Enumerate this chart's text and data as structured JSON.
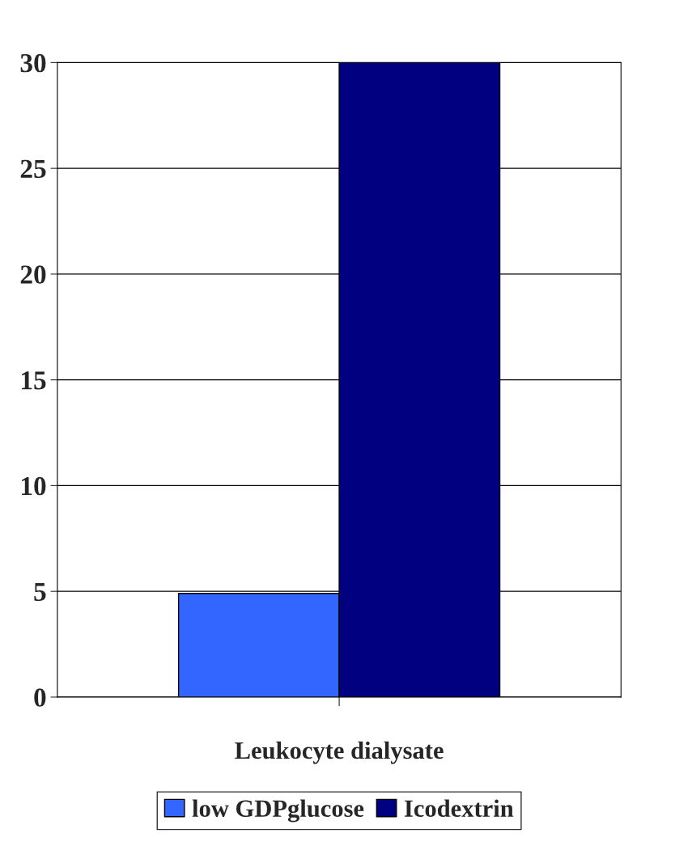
{
  "chart_data": {
    "type": "bar",
    "categories": [
      "Leukocyte dialysate"
    ],
    "series": [
      {
        "name": "low GDPglucose",
        "color": "#3366ff",
        "values": [
          4.9
        ]
      },
      {
        "name": "Icodextrin",
        "color": "#000080",
        "values": [
          30
        ]
      }
    ],
    "ylim": [
      0,
      30
    ],
    "yticks": [
      0,
      5,
      10,
      15,
      20,
      25,
      30
    ],
    "grid": "y",
    "legend": "bottom"
  }
}
